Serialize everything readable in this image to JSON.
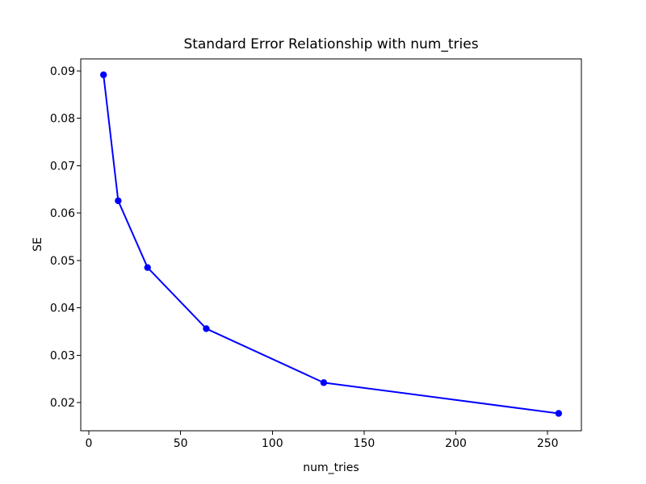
{
  "figure": {
    "title": "Standard Error Relationship with num_tries",
    "xlabel": "num_tries",
    "ylabel": "SE"
  },
  "chart_data": {
    "type": "line",
    "title": "Standard Error Relationship with num_tries",
    "xlabel": "num_tries",
    "ylabel": "SE",
    "x": [
      8,
      16,
      32,
      64,
      128,
      256
    ],
    "y": [
      0.0892,
      0.0626,
      0.0485,
      0.0356,
      0.0242,
      0.0177
    ],
    "marker": "o",
    "line_color": "#0000ff",
    "xlim": [
      -4.4,
      268.4
    ],
    "ylim": [
      0.01404,
      0.09256
    ],
    "x_ticks": [
      0,
      50,
      100,
      150,
      200,
      250
    ],
    "x_tick_labels": [
      "0",
      "50",
      "100",
      "150",
      "200",
      "250"
    ],
    "y_ticks": [
      0.02,
      0.03,
      0.04,
      0.05,
      0.06,
      0.07,
      0.08,
      0.09
    ],
    "y_tick_labels": [
      "0.02",
      "0.03",
      "0.04",
      "0.05",
      "0.06",
      "0.07",
      "0.08",
      "0.09"
    ],
    "grid": false,
    "legend": null
  },
  "colors": {
    "line": "#0000ff",
    "axis": "#000000",
    "background": "#ffffff"
  }
}
